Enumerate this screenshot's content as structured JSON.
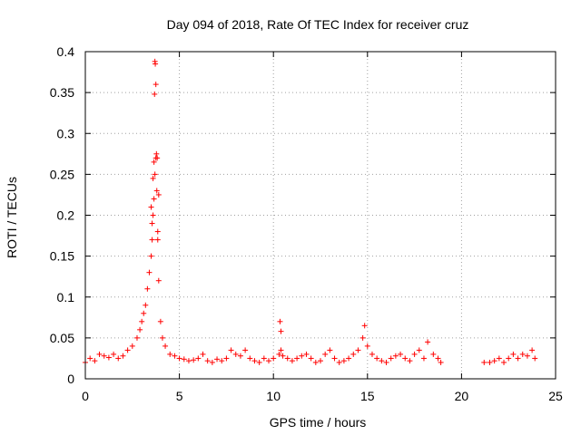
{
  "chart_data": {
    "type": "scatter",
    "title": "Day 094 of 2018, Rate Of TEC Index for receiver cruz",
    "xlabel": "GPS time / hours",
    "ylabel": "ROTI / TECUs",
    "xlim": [
      0,
      25
    ],
    "ylim": [
      0,
      0.4
    ],
    "xticks": [
      "0",
      "5",
      "10",
      "15",
      "20",
      "25"
    ],
    "xtick_values": [
      0,
      5,
      10,
      15,
      20,
      25
    ],
    "yticks": [
      "0",
      "0.05",
      "0.1",
      "0.15",
      "0.2",
      "0.25",
      "0.3",
      "0.35",
      "0.4"
    ],
    "ytick_values": [
      0,
      0.05,
      0.1,
      0.15,
      0.2,
      0.25,
      0.3,
      0.35,
      0.4
    ],
    "grid": true,
    "marker": "+",
    "marker_color": "#ff0000",
    "series": [
      {
        "name": "ROTI",
        "x": [
          0.0,
          0.25,
          0.5,
          0.75,
          1.0,
          1.25,
          1.5,
          1.75,
          2.0,
          2.25,
          2.5,
          2.75,
          2.9,
          3.0,
          3.1,
          3.2,
          3.3,
          3.4,
          3.5,
          3.55,
          3.6,
          3.65,
          3.7,
          3.75,
          3.8,
          3.85,
          3.9,
          4.0,
          4.1,
          4.25,
          4.5,
          4.75,
          5.0,
          5.25,
          5.5,
          5.75,
          6.0,
          6.25,
          6.5,
          6.75,
          7.0,
          7.25,
          7.5,
          7.75,
          8.0,
          8.25,
          8.5,
          8.75,
          9.0,
          9.25,
          9.5,
          9.75,
          10.0,
          10.3,
          10.4,
          10.5,
          10.75,
          11.0,
          11.25,
          11.5,
          11.75,
          12.0,
          12.25,
          12.5,
          12.75,
          13.0,
          13.25,
          13.5,
          13.75,
          14.0,
          14.25,
          14.5,
          14.75,
          14.85,
          15.0,
          15.25,
          15.5,
          15.75,
          16.0,
          16.25,
          16.5,
          16.75,
          17.0,
          17.25,
          17.5,
          17.75,
          18.0,
          18.2,
          18.5,
          18.75,
          18.9,
          21.2,
          21.5,
          21.75,
          22.0,
          22.25,
          22.5,
          22.75,
          23.0,
          23.25,
          23.5,
          23.75,
          23.9,
          3.7,
          3.72,
          3.75,
          3.68,
          3.78,
          3.82,
          3.6,
          3.9,
          3.5,
          3.55,
          3.65,
          3.85,
          10.35,
          10.4
        ],
        "y": [
          0.02,
          0.025,
          0.022,
          0.03,
          0.028,
          0.026,
          0.03,
          0.025,
          0.028,
          0.035,
          0.04,
          0.05,
          0.06,
          0.07,
          0.08,
          0.09,
          0.11,
          0.13,
          0.15,
          0.17,
          0.2,
          0.22,
          0.25,
          0.27,
          0.23,
          0.18,
          0.12,
          0.07,
          0.05,
          0.04,
          0.03,
          0.028,
          0.025,
          0.024,
          0.022,
          0.023,
          0.025,
          0.03,
          0.022,
          0.02,
          0.024,
          0.022,
          0.025,
          0.035,
          0.03,
          0.028,
          0.035,
          0.025,
          0.022,
          0.02,
          0.025,
          0.022,
          0.025,
          0.03,
          0.035,
          0.028,
          0.025,
          0.022,
          0.025,
          0.028,
          0.03,
          0.025,
          0.02,
          0.022,
          0.03,
          0.035,
          0.025,
          0.02,
          0.022,
          0.025,
          0.03,
          0.035,
          0.05,
          0.065,
          0.04,
          0.03,
          0.025,
          0.022,
          0.02,
          0.025,
          0.028,
          0.03,
          0.025,
          0.022,
          0.03,
          0.035,
          0.025,
          0.045,
          0.03,
          0.025,
          0.02,
          0.02,
          0.02,
          0.022,
          0.025,
          0.02,
          0.025,
          0.03,
          0.025,
          0.03,
          0.028,
          0.035,
          0.025,
          0.388,
          0.385,
          0.36,
          0.348,
          0.275,
          0.27,
          0.245,
          0.225,
          0.21,
          0.19,
          0.265,
          0.17,
          0.07,
          0.058
        ]
      }
    ]
  }
}
